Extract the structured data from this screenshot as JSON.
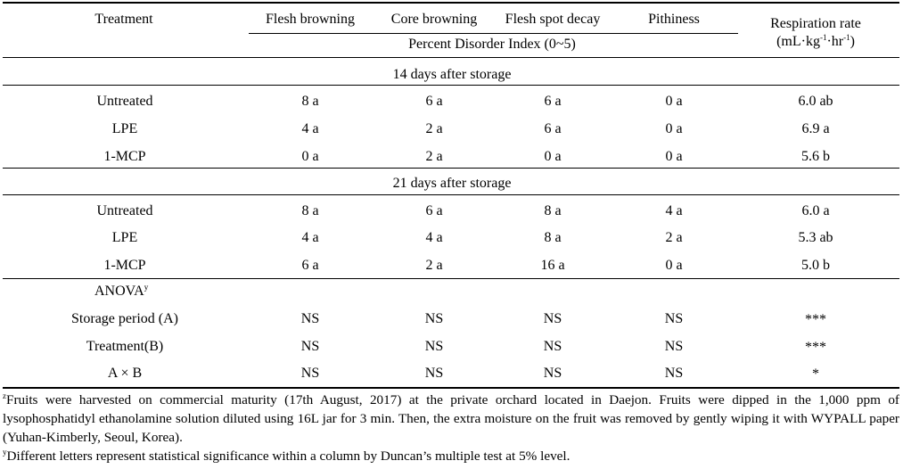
{
  "header": {
    "treatment": "Treatment",
    "flesh_browning": "Flesh browning",
    "core_browning": "Core browning",
    "flesh_spot_decay": "Flesh spot decay",
    "pithiness": "Pithiness",
    "respiration_line1": "Respiration rate",
    "respiration_unit_a": "(mL·kg",
    "respiration_sup1": "-1",
    "respiration_unit_b": "·hr",
    "respiration_sup2": "-1",
    "respiration_unit_c": ")",
    "percent_index": "Percent Disorder Index (0~5)"
  },
  "section14": {
    "title": "14 days after storage",
    "rows": [
      {
        "treatment": "Untreated",
        "flesh_browning": "8 a",
        "core_browning": "6 a",
        "flesh_spot_decay": "6 a",
        "pithiness": "0 a",
        "respiration": "6.0 ab"
      },
      {
        "treatment": "LPE",
        "flesh_browning": "4 a",
        "core_browning": "2 a",
        "flesh_spot_decay": "6 a",
        "pithiness": "0 a",
        "respiration": "6.9 a"
      },
      {
        "treatment": "1-MCP",
        "flesh_browning": "0 a",
        "core_browning": "2 a",
        "flesh_spot_decay": "0 a",
        "pithiness": "0 a",
        "respiration": "5.6 b"
      }
    ]
  },
  "section21": {
    "title": "21 days after storage",
    "rows": [
      {
        "treatment": "Untreated",
        "flesh_browning": "8 a",
        "core_browning": "6 a",
        "flesh_spot_decay": "8 a",
        "pithiness": "4 a",
        "respiration": "6.0 a"
      },
      {
        "treatment": "LPE",
        "flesh_browning": "4 a",
        "core_browning": "4 a",
        "flesh_spot_decay": "8 a",
        "pithiness": "2 a",
        "respiration": "5.3 ab"
      },
      {
        "treatment": "1-MCP",
        "flesh_browning": "6 a",
        "core_browning": "2 a",
        "flesh_spot_decay": "16 a",
        "pithiness": "0 a",
        "respiration": "5.0 b"
      }
    ]
  },
  "anova": {
    "title": "ANOVA",
    "title_sup": "y",
    "rows": [
      {
        "label": "Storage period (A)",
        "flesh_browning": "NS",
        "core_browning": "NS",
        "flesh_spot_decay": "NS",
        "pithiness": "NS",
        "respiration": "***"
      },
      {
        "label": "Treatment(B)",
        "flesh_browning": "NS",
        "core_browning": "NS",
        "flesh_spot_decay": "NS",
        "pithiness": "NS",
        "respiration": "***"
      },
      {
        "label": "A × B",
        "flesh_browning": "NS",
        "core_browning": "NS",
        "flesh_spot_decay": "NS",
        "pithiness": "NS",
        "respiration": "*"
      }
    ]
  },
  "footnotes": {
    "z_mark": "z",
    "z_text": "Fruits were harvested on commercial maturity (17th August, 2017) at the private orchard located in Daejon. Fruits were dipped in the 1,000 ppm of lysophosphatidyl ethanolamine solution diluted using 16L jar for 3 min. Then, the extra moisture on the fruit was removed by gently wiping it with WYPALL paper (Yuhan-Kimberly, Seoul, Korea).",
    "y_mark": "y",
    "y_text": "Different letters represent statistical significance within a column by Duncan’s multiple test at 5% level."
  }
}
